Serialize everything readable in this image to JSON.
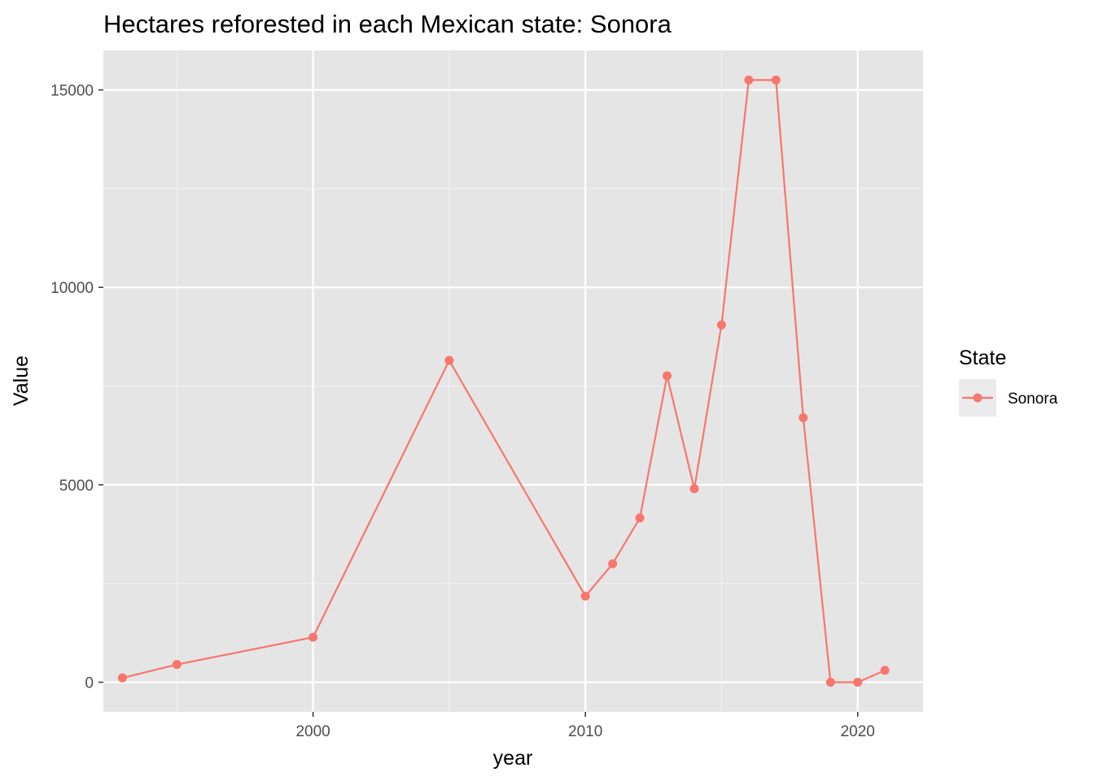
{
  "chart_data": {
    "type": "line",
    "title": "Hectares reforested in each Mexican state: Sonora",
    "xlabel": "year",
    "ylabel": "Value",
    "xlim": [
      1992.3,
      2022.4
    ],
    "ylim": [
      -750,
      16000
    ],
    "x_ticks": [
      2000,
      2010,
      2020
    ],
    "x_minor_ticks": [
      1995,
      2005,
      2015
    ],
    "y_ticks": [
      0,
      5000,
      10000,
      15000
    ],
    "y_minor_ticks": [
      2500,
      7500,
      12500
    ],
    "grid": true,
    "legend": {
      "title": "State",
      "placement": "right"
    },
    "series": [
      {
        "name": "Sonora",
        "color": "#f8766d",
        "x": [
          1993,
          1995,
          2000,
          2005,
          2010,
          2011,
          2012,
          2013,
          2014,
          2015,
          2016,
          2017,
          2018,
          2019,
          2020,
          2021
        ],
        "values": [
          110,
          450,
          1140,
          8150,
          2180,
          3000,
          4160,
          7760,
          4900,
          9050,
          15250,
          15250,
          6700,
          0,
          0,
          300
        ]
      }
    ]
  }
}
